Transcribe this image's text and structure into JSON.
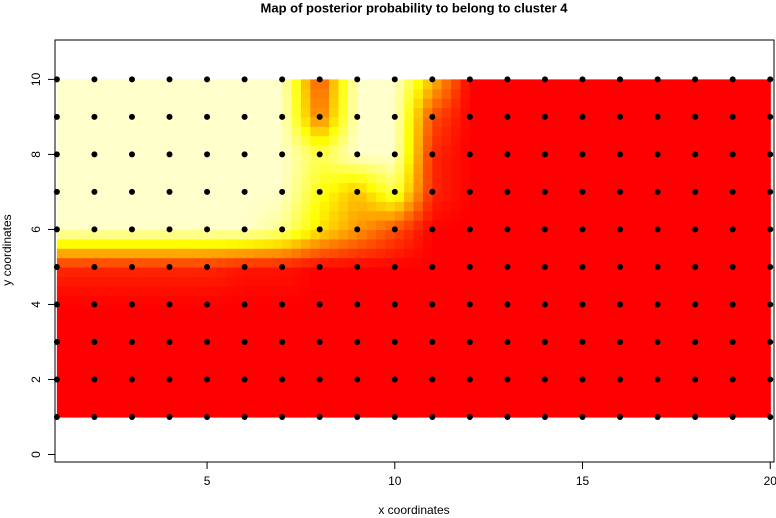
{
  "chart_data": {
    "type": "heatmap",
    "title": "Map of posterior probability to belong to cluster  4",
    "x_label": "x coordinates",
    "y_label": "y coordinates",
    "x": [
      1,
      2,
      3,
      4,
      5,
      6,
      7,
      8,
      9,
      10,
      11,
      12,
      13,
      14,
      15,
      16,
      17,
      18,
      19,
      20
    ],
    "y": [
      1,
      2,
      3,
      4,
      5,
      6,
      7,
      8,
      9,
      10
    ],
    "z": [
      [
        0,
        0,
        0,
        0,
        0,
        0,
        0,
        0,
        0,
        0,
        0,
        0,
        0,
        0,
        0,
        0,
        0,
        0,
        0,
        0
      ],
      [
        0,
        0,
        0,
        0,
        0,
        0,
        0,
        0,
        0,
        0,
        0,
        0,
        0,
        0,
        0,
        0,
        0,
        0,
        0,
        0
      ],
      [
        0,
        0,
        0,
        0,
        0,
        0,
        0,
        0,
        0,
        0,
        0,
        0,
        0,
        0,
        0,
        0,
        0,
        0,
        0,
        0
      ],
      [
        0,
        0,
        0,
        0,
        0,
        0,
        0,
        0,
        0,
        0,
        0,
        0,
        0,
        0,
        0,
        0,
        0,
        0,
        0,
        0
      ],
      [
        0.1,
        0.1,
        0.1,
        0.1,
        0.1,
        0.05,
        0.05,
        0,
        0,
        0,
        0,
        0,
        0,
        0,
        0,
        0,
        0,
        0,
        0,
        0
      ],
      [
        1,
        1,
        1,
        1,
        1,
        1,
        0.9,
        0.6,
        0.4,
        0.2,
        0,
        0,
        0,
        0,
        0,
        0,
        0,
        0,
        0,
        0
      ],
      [
        1,
        1,
        1,
        1,
        1,
        1,
        1,
        0.7,
        0.5,
        0.8,
        0.1,
        0,
        0,
        0,
        0,
        0,
        0,
        0,
        0,
        0
      ],
      [
        1,
        1,
        1,
        1,
        1,
        1,
        1,
        0.8,
        1,
        1,
        0.1,
        0,
        0,
        0,
        0,
        0,
        0,
        0,
        0,
        0
      ],
      [
        1,
        1,
        1,
        1,
        1,
        1,
        1,
        0.3,
        1,
        1,
        0.2,
        0,
        0,
        0,
        0,
        0,
        0,
        0,
        0,
        0
      ],
      [
        1,
        1,
        1,
        1,
        1,
        1,
        1,
        0.2,
        1,
        1,
        0.5,
        0,
        0,
        0,
        0,
        0,
        0,
        0,
        0,
        0
      ]
    ],
    "colors": [
      "#ff0000",
      "#ff8000",
      "#ffff00",
      "#ffffcc"
    ],
    "point_color": "#000000",
    "xlim": [
      0.95,
      20.1
    ],
    "ylim": [
      -0.2,
      11.05
    ],
    "xticks": [
      5,
      10,
      15,
      20
    ],
    "yticks": [
      0,
      2,
      4,
      6,
      8,
      10
    ]
  }
}
